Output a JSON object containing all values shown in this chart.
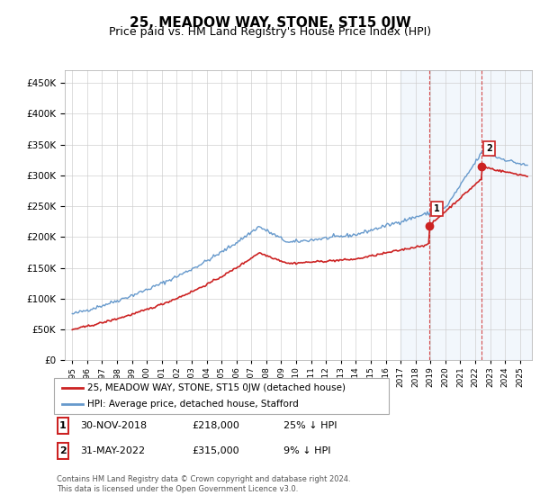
{
  "title": "25, MEADOW WAY, STONE, ST15 0JW",
  "subtitle": "Price paid vs. HM Land Registry's House Price Index (HPI)",
  "ylim": [
    0,
    470000
  ],
  "yticks": [
    0,
    50000,
    100000,
    150000,
    200000,
    250000,
    300000,
    350000,
    400000,
    450000
  ],
  "background_color": "#ffffff",
  "grid_color": "#cccccc",
  "hpi_color": "#6699cc",
  "price_color": "#cc2222",
  "highlight_bg": "#ddeeff",
  "marker1_year": 2018.92,
  "marker1_price": 218000,
  "marker2_year": 2022.42,
  "marker2_price": 315000,
  "legend_label_price": "25, MEADOW WAY, STONE, ST15 0JW (detached house)",
  "legend_label_hpi": "HPI: Average price, detached house, Stafford",
  "table_row1": [
    "1",
    "30-NOV-2018",
    "£218,000",
    "25% ↓ HPI"
  ],
  "table_row2": [
    "2",
    "31-MAY-2022",
    "£315,000",
    "9% ↓ HPI"
  ],
  "footnote": "Contains HM Land Registry data © Crown copyright and database right 2024.\nThis data is licensed under the Open Government Licence v3.0.",
  "title_fontsize": 11,
  "subtitle_fontsize": 9
}
